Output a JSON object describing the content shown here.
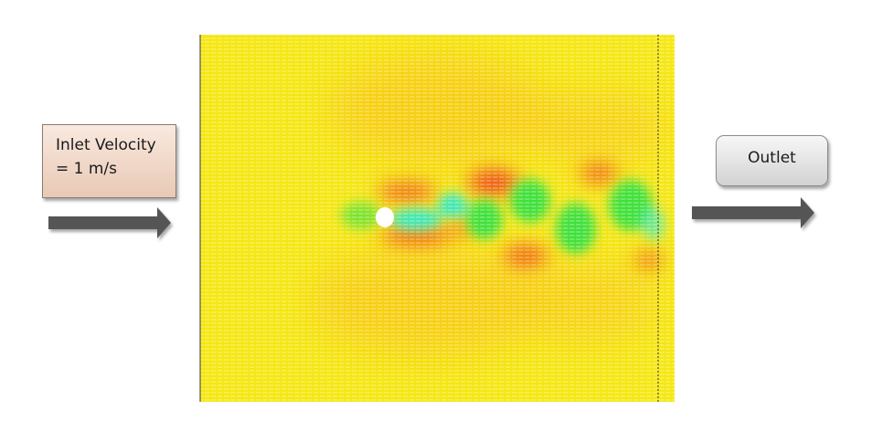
{
  "inlet": {
    "line1": "Inlet Velocity",
    "line2": "= 1 m/s"
  },
  "outlet": {
    "label": "Outlet"
  },
  "colors": {
    "field_base": "#f5e712",
    "warm": "#f8c414",
    "hot": "#ee4a14",
    "wake_green": "#3fe03a",
    "wake_cyan": "#3ee8b8",
    "arrow": "#555555",
    "cylinder": "#ffffff"
  },
  "icons": {
    "inlet_arrow": "arrow-right-icon",
    "outlet_arrow": "arrow-right-icon",
    "cylinder": "circle-icon"
  }
}
